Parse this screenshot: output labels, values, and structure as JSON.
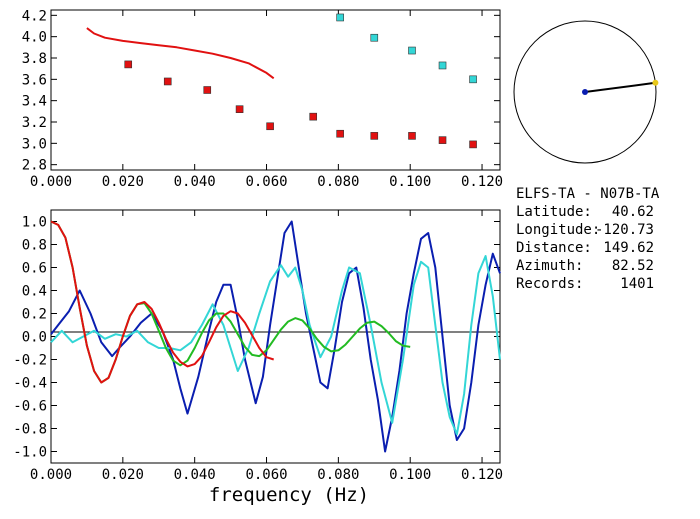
{
  "chart_data": [
    {
      "type": "scatter",
      "xlim": [
        0.0,
        0.125
      ],
      "ylim": [
        2.75,
        4.25
      ],
      "x_ticks": [
        "0.000",
        "0.020",
        "0.040",
        "0.060",
        "0.080",
        "0.100",
        "0.120"
      ],
      "y_ticks": [
        "2.8",
        "3.0",
        "3.2",
        "3.4",
        "3.6",
        "3.8",
        "4.0",
        "4.2"
      ],
      "series": [
        {
          "kind": "line",
          "color": "#e11111",
          "x": [
            0.01,
            0.012,
            0.015,
            0.02,
            0.025,
            0.03,
            0.035,
            0.04,
            0.045,
            0.05,
            0.055,
            0.06,
            0.062
          ],
          "y": [
            4.08,
            4.03,
            3.99,
            3.96,
            3.94,
            3.92,
            3.9,
            3.87,
            3.84,
            3.8,
            3.75,
            3.66,
            3.61
          ]
        },
        {
          "kind": "points",
          "color": "#e11111",
          "x": [
            0.0215,
            0.0325,
            0.0435,
            0.0525,
            0.061,
            0.073,
            0.0805,
            0.09,
            0.1005,
            0.109,
            0.1175
          ],
          "y": [
            3.74,
            3.58,
            3.5,
            3.32,
            3.16,
            3.25,
            3.09,
            3.07,
            3.07,
            3.03,
            2.99
          ]
        },
        {
          "kind": "points",
          "color": "#33d6d6",
          "x": [
            0.0805,
            0.09,
            0.1005,
            0.109,
            0.1175
          ],
          "y": [
            4.18,
            3.99,
            3.87,
            3.73,
            3.6
          ]
        }
      ]
    },
    {
      "type": "line",
      "xlim": [
        0.0,
        0.125
      ],
      "ylim": [
        -1.1,
        1.1
      ],
      "x_ticks": [
        "0.000",
        "0.020",
        "0.040",
        "0.060",
        "0.080",
        "0.100",
        "0.120"
      ],
      "y_ticks": [
        "-1.0",
        "-0.8",
        "-0.6",
        "-0.4",
        "-0.2",
        "0.0",
        "0.2",
        "0.4",
        "0.6",
        "0.8",
        "1.0"
      ],
      "xlabel": "frequency (Hz)",
      "series": [
        {
          "color": "#0a1eb0",
          "x": [
            0.0,
            0.002,
            0.005,
            0.008,
            0.011,
            0.014,
            0.017,
            0.019,
            0.022,
            0.025,
            0.028,
            0.031,
            0.034,
            0.036,
            0.038,
            0.041,
            0.044,
            0.046,
            0.048,
            0.05,
            0.052,
            0.054,
            0.057,
            0.059,
            0.061,
            0.063,
            0.065,
            0.067,
            0.069,
            0.071,
            0.073,
            0.075,
            0.077,
            0.079,
            0.081,
            0.083,
            0.085,
            0.087,
            0.089,
            0.091,
            0.093,
            0.095,
            0.097,
            0.099,
            0.101,
            0.103,
            0.105,
            0.107,
            0.109,
            0.111,
            0.113,
            0.115,
            0.117,
            0.119,
            0.121,
            0.123,
            0.125
          ],
          "y": [
            0.02,
            0.1,
            0.22,
            0.4,
            0.2,
            -0.05,
            -0.17,
            -0.1,
            0.0,
            0.12,
            0.2,
            0.05,
            -0.2,
            -0.45,
            -0.67,
            -0.35,
            0.05,
            0.3,
            0.45,
            0.45,
            0.15,
            -0.2,
            -0.58,
            -0.35,
            0.1,
            0.5,
            0.9,
            1.0,
            0.6,
            0.2,
            -0.1,
            -0.4,
            -0.45,
            -0.1,
            0.3,
            0.55,
            0.6,
            0.25,
            -0.2,
            -0.55,
            -1.0,
            -0.7,
            -0.3,
            0.2,
            0.55,
            0.85,
            0.9,
            0.6,
            0.0,
            -0.6,
            -0.9,
            -0.8,
            -0.4,
            0.1,
            0.45,
            0.72,
            0.55
          ]
        },
        {
          "color": "#33d6d6",
          "x": [
            0.0,
            0.003,
            0.006,
            0.009,
            0.012,
            0.015,
            0.018,
            0.021,
            0.024,
            0.027,
            0.03,
            0.033,
            0.036,
            0.039,
            0.042,
            0.045,
            0.048,
            0.05,
            0.052,
            0.055,
            0.058,
            0.061,
            0.064,
            0.066,
            0.068,
            0.07,
            0.072,
            0.075,
            0.078,
            0.081,
            0.083,
            0.086,
            0.089,
            0.092,
            0.095,
            0.098,
            0.101,
            0.103,
            0.105,
            0.107,
            0.109,
            0.111,
            0.113,
            0.115,
            0.117,
            0.119,
            0.121,
            0.123,
            0.125
          ],
          "y": [
            -0.05,
            0.05,
            -0.05,
            0.0,
            0.05,
            -0.02,
            0.02,
            0.0,
            0.05,
            -0.05,
            -0.1,
            -0.1,
            -0.12,
            -0.05,
            0.1,
            0.28,
            0.1,
            -0.1,
            -0.3,
            -0.1,
            0.2,
            0.48,
            0.62,
            0.52,
            0.6,
            0.4,
            0.1,
            -0.18,
            0.0,
            0.4,
            0.6,
            0.55,
            0.1,
            -0.4,
            -0.75,
            -0.2,
            0.45,
            0.65,
            0.6,
            0.1,
            -0.4,
            -0.7,
            -0.85,
            -0.5,
            0.1,
            0.55,
            0.7,
            0.35,
            -0.2
          ]
        },
        {
          "color": "#22bb22",
          "x": [
            0.0,
            0.002,
            0.004,
            0.006,
            0.008,
            0.01,
            0.012,
            0.014,
            0.016,
            0.018,
            0.02,
            0.022,
            0.024,
            0.026,
            0.028,
            0.03,
            0.032,
            0.034,
            0.036,
            0.038,
            0.04,
            0.042,
            0.044,
            0.046,
            0.048,
            0.05,
            0.052,
            0.054,
            0.056,
            0.058,
            0.06,
            0.062,
            0.064,
            0.066,
            0.068,
            0.07,
            0.072,
            0.074,
            0.076,
            0.078,
            0.08,
            0.082,
            0.084,
            0.086,
            0.088,
            0.09,
            0.092,
            0.094,
            0.096,
            0.098,
            0.1
          ],
          "y": [
            1.0,
            0.97,
            0.86,
            0.6,
            0.25,
            -0.08,
            -0.3,
            -0.4,
            -0.36,
            -0.2,
            0.0,
            0.18,
            0.28,
            0.29,
            0.2,
            0.05,
            -0.1,
            -0.21,
            -0.25,
            -0.21,
            -0.1,
            0.03,
            0.14,
            0.2,
            0.2,
            0.13,
            0.02,
            -0.09,
            -0.16,
            -0.17,
            -0.12,
            -0.03,
            0.06,
            0.13,
            0.16,
            0.14,
            0.07,
            -0.02,
            -0.09,
            -0.13,
            -0.12,
            -0.07,
            0.0,
            0.07,
            0.12,
            0.13,
            0.09,
            0.03,
            -0.04,
            -0.08,
            -0.09
          ]
        },
        {
          "color": "#e11111",
          "x": [
            0.0,
            0.002,
            0.004,
            0.006,
            0.008,
            0.01,
            0.012,
            0.014,
            0.016,
            0.018,
            0.02,
            0.022,
            0.024,
            0.026,
            0.028,
            0.03,
            0.032,
            0.034,
            0.036,
            0.038,
            0.04,
            0.042,
            0.044,
            0.046,
            0.048,
            0.05,
            0.052,
            0.054,
            0.056,
            0.058,
            0.06,
            0.062
          ],
          "y": [
            1.0,
            0.97,
            0.86,
            0.6,
            0.25,
            -0.08,
            -0.3,
            -0.4,
            -0.36,
            -0.2,
            0.0,
            0.18,
            0.28,
            0.3,
            0.24,
            0.12,
            -0.02,
            -0.14,
            -0.22,
            -0.26,
            -0.24,
            -0.17,
            -0.05,
            0.08,
            0.18,
            0.22,
            0.2,
            0.12,
            0.01,
            -0.1,
            -0.18,
            -0.2
          ]
        }
      ]
    }
  ],
  "compass": {
    "azimuth": 82.52,
    "needle_color": "#000000",
    "center_color": "#0a1eb0",
    "tip_color": "#e8c81a"
  },
  "station": {
    "pair": "ELFS-TA  - N07B-TA",
    "rows": [
      {
        "label": "Latitude:",
        "value": "40.62"
      },
      {
        "label": "Longitude:",
        "value": "-120.73"
      },
      {
        "label": "Distance:",
        "value": "149.62"
      },
      {
        "label": "Azimuth:",
        "value": "82.52"
      },
      {
        "label": "Records:",
        "value": "1401"
      }
    ]
  }
}
